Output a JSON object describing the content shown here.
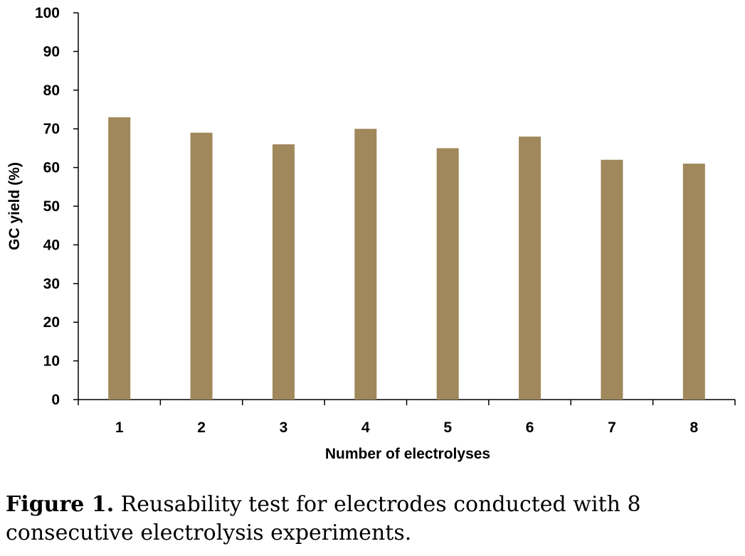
{
  "chart_data": {
    "type": "bar",
    "categories": [
      "1",
      "2",
      "3",
      "4",
      "5",
      "6",
      "7",
      "8"
    ],
    "values": [
      73,
      69,
      66,
      70,
      65,
      68,
      62,
      61
    ],
    "xlabel": "Number of electrolyses",
    "ylabel": "GC yield (%)",
    "ylim": [
      0,
      100
    ],
    "yticks": [
      "0",
      "10",
      "20",
      "30",
      "40",
      "50",
      "60",
      "70",
      "80",
      "90",
      "100"
    ],
    "grid": false,
    "legend": "none",
    "bar_color": "#A0885C",
    "axis_color": "#000000"
  },
  "caption": {
    "label": "Figure 1.",
    "text": " Reusability test for electrodes conducted with 8 consecutive electrolysis experiments."
  }
}
